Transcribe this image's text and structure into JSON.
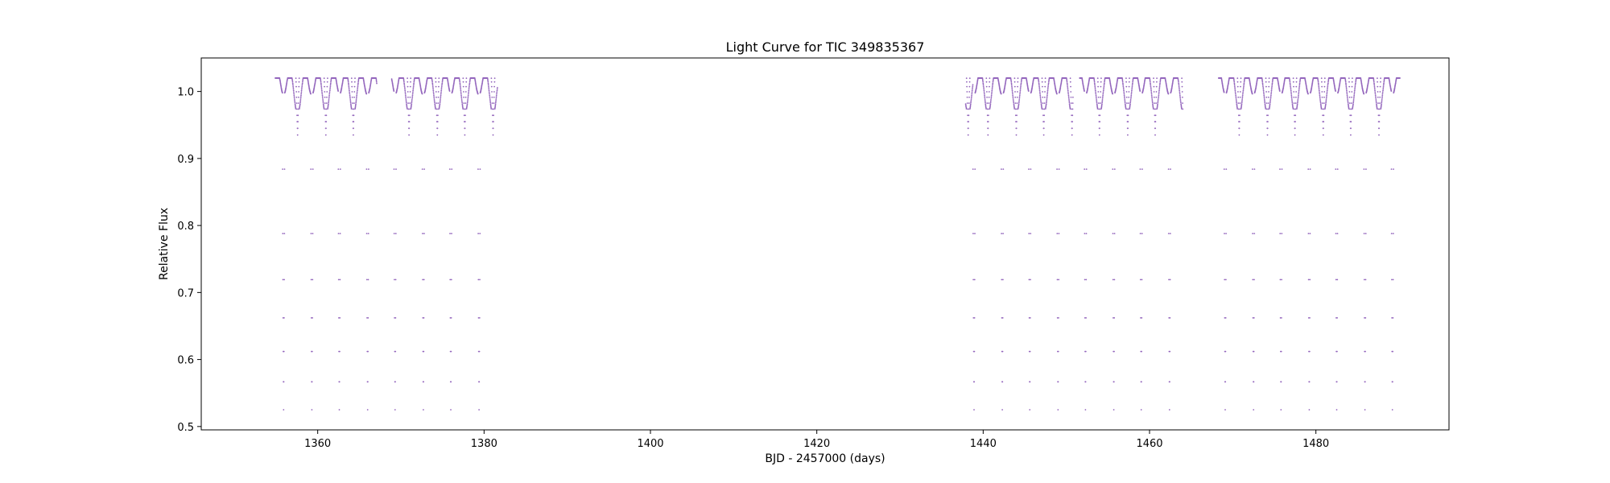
{
  "chart_data": {
    "type": "scatter",
    "title": "Light Curve for TIC 349835367",
    "xlabel": "BJD - 2457000 (days)",
    "ylabel": "Relative Flux",
    "xlim": [
      1346,
      1496
    ],
    "ylim": [
      0.495,
      1.05
    ],
    "xticks": [
      1360,
      1380,
      1400,
      1420,
      1440,
      1460,
      1480
    ],
    "yticks": [
      0.5,
      0.6,
      0.7,
      0.8,
      0.9,
      1.0
    ],
    "xtick_labels": [
      "1360",
      "1380",
      "1400",
      "1420",
      "1440",
      "1460",
      "1480"
    ],
    "ytick_labels": [
      "0.5",
      "0.6",
      "0.7",
      "0.8",
      "0.9",
      "1.0"
    ],
    "grid": false,
    "marker_color": "#9467bd",
    "series": [
      {
        "segments": [
          [
            1354.9,
            1367.1
          ],
          [
            1368.9,
            1381.6
          ],
          [
            1437.9,
            1450.8
          ],
          [
            1451.6,
            1464.0
          ],
          [
            1468.3,
            1490.1
          ]
        ],
        "eclipse_times": [
          1355.9,
          1359.3,
          1362.6,
          1366.0,
          1369.3,
          1372.7,
          1376.0,
          1379.4,
          1438.9,
          1442.3,
          1445.6,
          1449.0,
          1452.3,
          1455.7,
          1459.0,
          1462.4,
          1469.1,
          1472.5,
          1475.8,
          1479.2,
          1482.5,
          1485.9,
          1489.2
        ],
        "eclipse_depth_min": 0.525,
        "secondary_eclipse_min": 0.935,
        "out_of_eclipse_max": 1.02,
        "period_days": 3.36
      }
    ]
  }
}
